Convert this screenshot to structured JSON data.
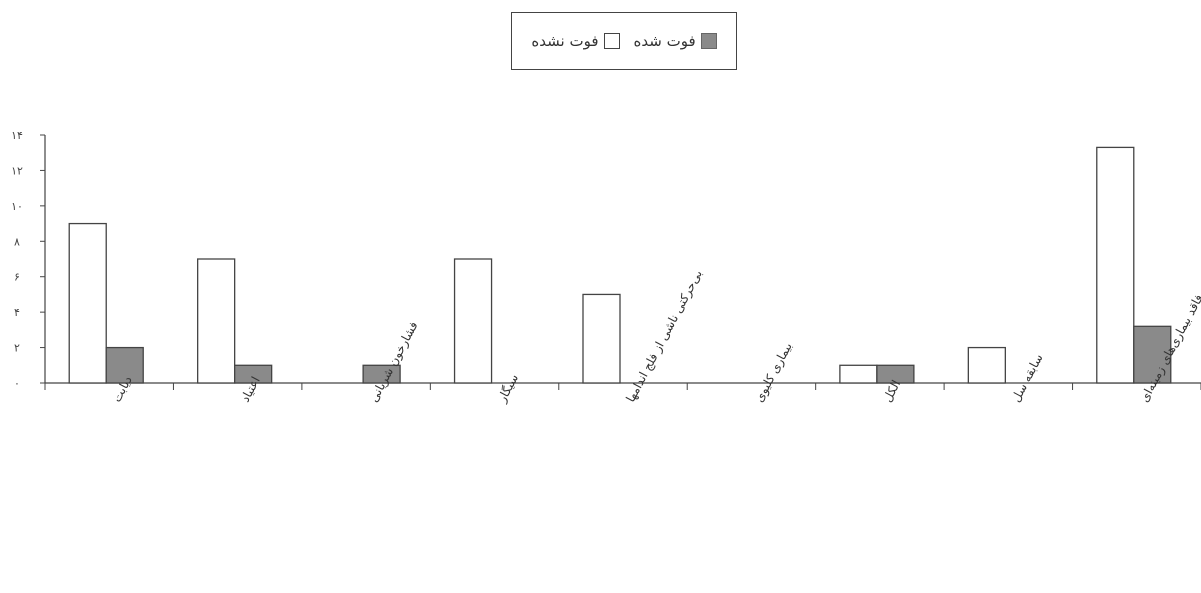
{
  "legend": {
    "series_died": "فوت شده",
    "series_survived": "فوت نشده"
  },
  "chart_data": {
    "type": "bar",
    "title": "",
    "xlabel": "",
    "ylabel": "",
    "ylim": [
      0,
      14
    ],
    "yticks": [
      0,
      2,
      4,
      6,
      8,
      10,
      12,
      14
    ],
    "ytick_labels": [
      "۰",
      "۲",
      "۴",
      "۶",
      "۸",
      "۱۰",
      "۱۲",
      "۱۴"
    ],
    "grid": false,
    "legend_position": "top-center",
    "categories": [
      "دیابت",
      "اعتیاد",
      "فشارخون شریانی",
      "سیگار",
      "بی‌حرکتی ناشی از فلج اندامها",
      "بیماری کلیوی",
      "الکل",
      "سابقه سل",
      "فاقد بیماری‌های زمینه‌ای"
    ],
    "series": [
      {
        "name": "فوت نشده",
        "color": "#ffffff",
        "values": [
          9,
          7,
          0,
          7,
          5,
          0,
          1,
          2,
          13.3
        ]
      },
      {
        "name": "فوت شده",
        "color": "#8a8a8a",
        "values": [
          2,
          1,
          1,
          0,
          0,
          0,
          1,
          0,
          3.2
        ]
      }
    ]
  }
}
